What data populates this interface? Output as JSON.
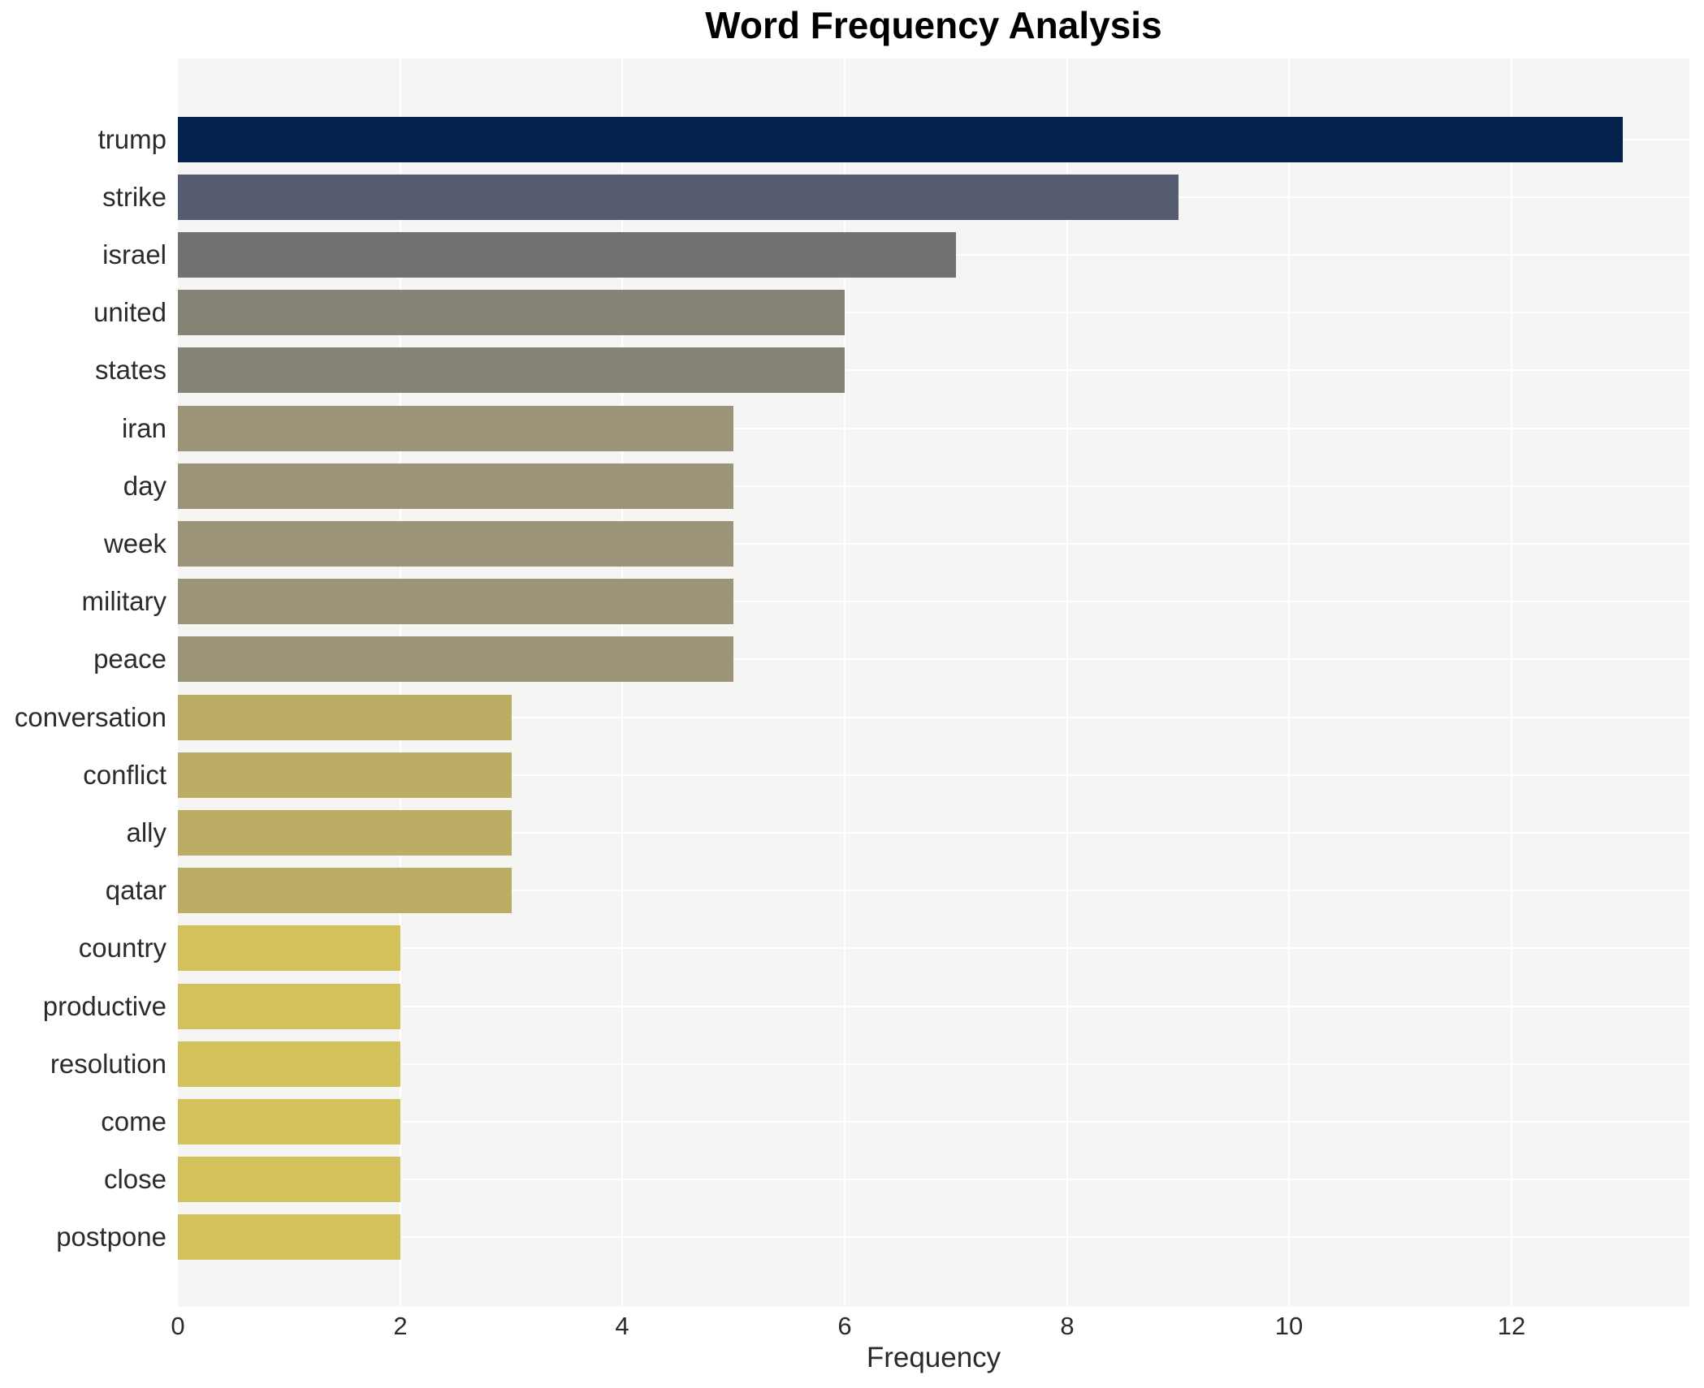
{
  "page": {
    "title": "Word Frequency Analysis"
  },
  "chart_data": {
    "type": "bar",
    "orientation": "horizontal",
    "title": "Word Frequency Analysis",
    "xlabel": "Frequency",
    "ylabel": "",
    "categories": [
      "trump",
      "strike",
      "israel",
      "united",
      "states",
      "iran",
      "day",
      "week",
      "military",
      "peace",
      "conversation",
      "conflict",
      "ally",
      "qatar",
      "country",
      "productive",
      "resolution",
      "come",
      "close",
      "postpone"
    ],
    "values": [
      13,
      9,
      7,
      6,
      6,
      5,
      5,
      5,
      5,
      5,
      3,
      3,
      3,
      3,
      2,
      2,
      2,
      2,
      2,
      2
    ],
    "bar_colors": [
      "#04224e",
      "#565c6f",
      "#717171",
      "#868376",
      "#868376",
      "#9b9478",
      "#9b9478",
      "#9b9478",
      "#9b9478",
      "#9b9478",
      "#bcad66",
      "#bcad66",
      "#bcad66",
      "#bcad66",
      "#d3c15c",
      "#d3c15c",
      "#d3c15c",
      "#d3c15c",
      "#d3c15c",
      "#d3c15c"
    ],
    "xlim": [
      0,
      13.6
    ],
    "xticks": [
      0,
      2,
      4,
      6,
      8,
      10,
      12
    ],
    "grid": "on",
    "grid_color": "#ffffff",
    "panel_background": "#f5f5f3",
    "page_background": "#ffffff",
    "title_color": "#000000",
    "tick_text_color": "#2b2b2b",
    "legend_position": "none"
  }
}
